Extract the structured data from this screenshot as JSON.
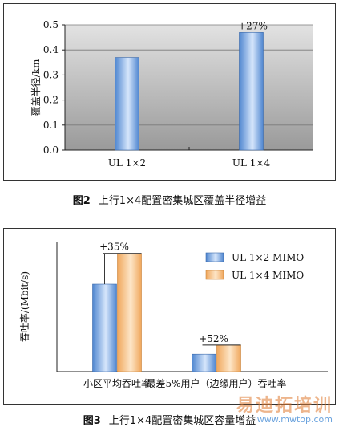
{
  "figures": {
    "fig2": {
      "caption_no": "图2",
      "caption_text": "上行1×4配置密集城区覆盖半径增益"
    },
    "fig3": {
      "caption_no": "图3",
      "caption_text": "上行1×4配置密集城区容量增益"
    }
  },
  "chart_data": [
    {
      "id": "fig2",
      "type": "bar",
      "title": "",
      "xlabel": "",
      "ylabel": "覆盖半径/km",
      "categories": [
        "UL 1×2",
        "UL 1×4"
      ],
      "series": [
        {
          "values": [
            0.37,
            0.47
          ]
        }
      ],
      "yticks": [
        "0.0",
        "0.1",
        "0.2",
        "0.3",
        "0.4",
        "0.5"
      ],
      "ylim": [
        0,
        0.5
      ],
      "annotations": [
        {
          "category": "UL 1×4",
          "text": "+27%"
        }
      ],
      "grid": true,
      "colors": {
        "bar": "#4f86d0",
        "bar_light": "#d6e6fb",
        "bg_top": "#e2e2e2",
        "bg_bottom": "#9a9a9a"
      }
    },
    {
      "id": "fig3",
      "type": "bar",
      "title": "",
      "xlabel": "",
      "ylabel": "吞吐率/(Mbit/s)",
      "categories": [
        "小区平均吞吐率",
        "最差5%用户（边缘用户）吞吐率"
      ],
      "series": [
        {
          "name": "UL 1×2 MIMO",
          "values": [
            0.74,
            0.148
          ]
        },
        {
          "name": "UL 1×4 MIMO",
          "values": [
            1.0,
            0.225
          ]
        }
      ],
      "ylim": [
        0,
        1.1
      ],
      "annotations": [
        {
          "category": "小区平均吞吐率",
          "text": "+35%"
        },
        {
          "category": "最差5%用户（边缘用户）吞吐率",
          "text": "+52%"
        }
      ],
      "legend": "top-right",
      "grid": false,
      "colors": {
        "series1": "#4f86d0",
        "series1_light": "#d6e6fb",
        "series2": "#f0a75c",
        "series2_light": "#fde6c8"
      }
    }
  ],
  "watermark": {
    "cn": "易迪拓培训",
    "en": "www.mwtop.com"
  }
}
